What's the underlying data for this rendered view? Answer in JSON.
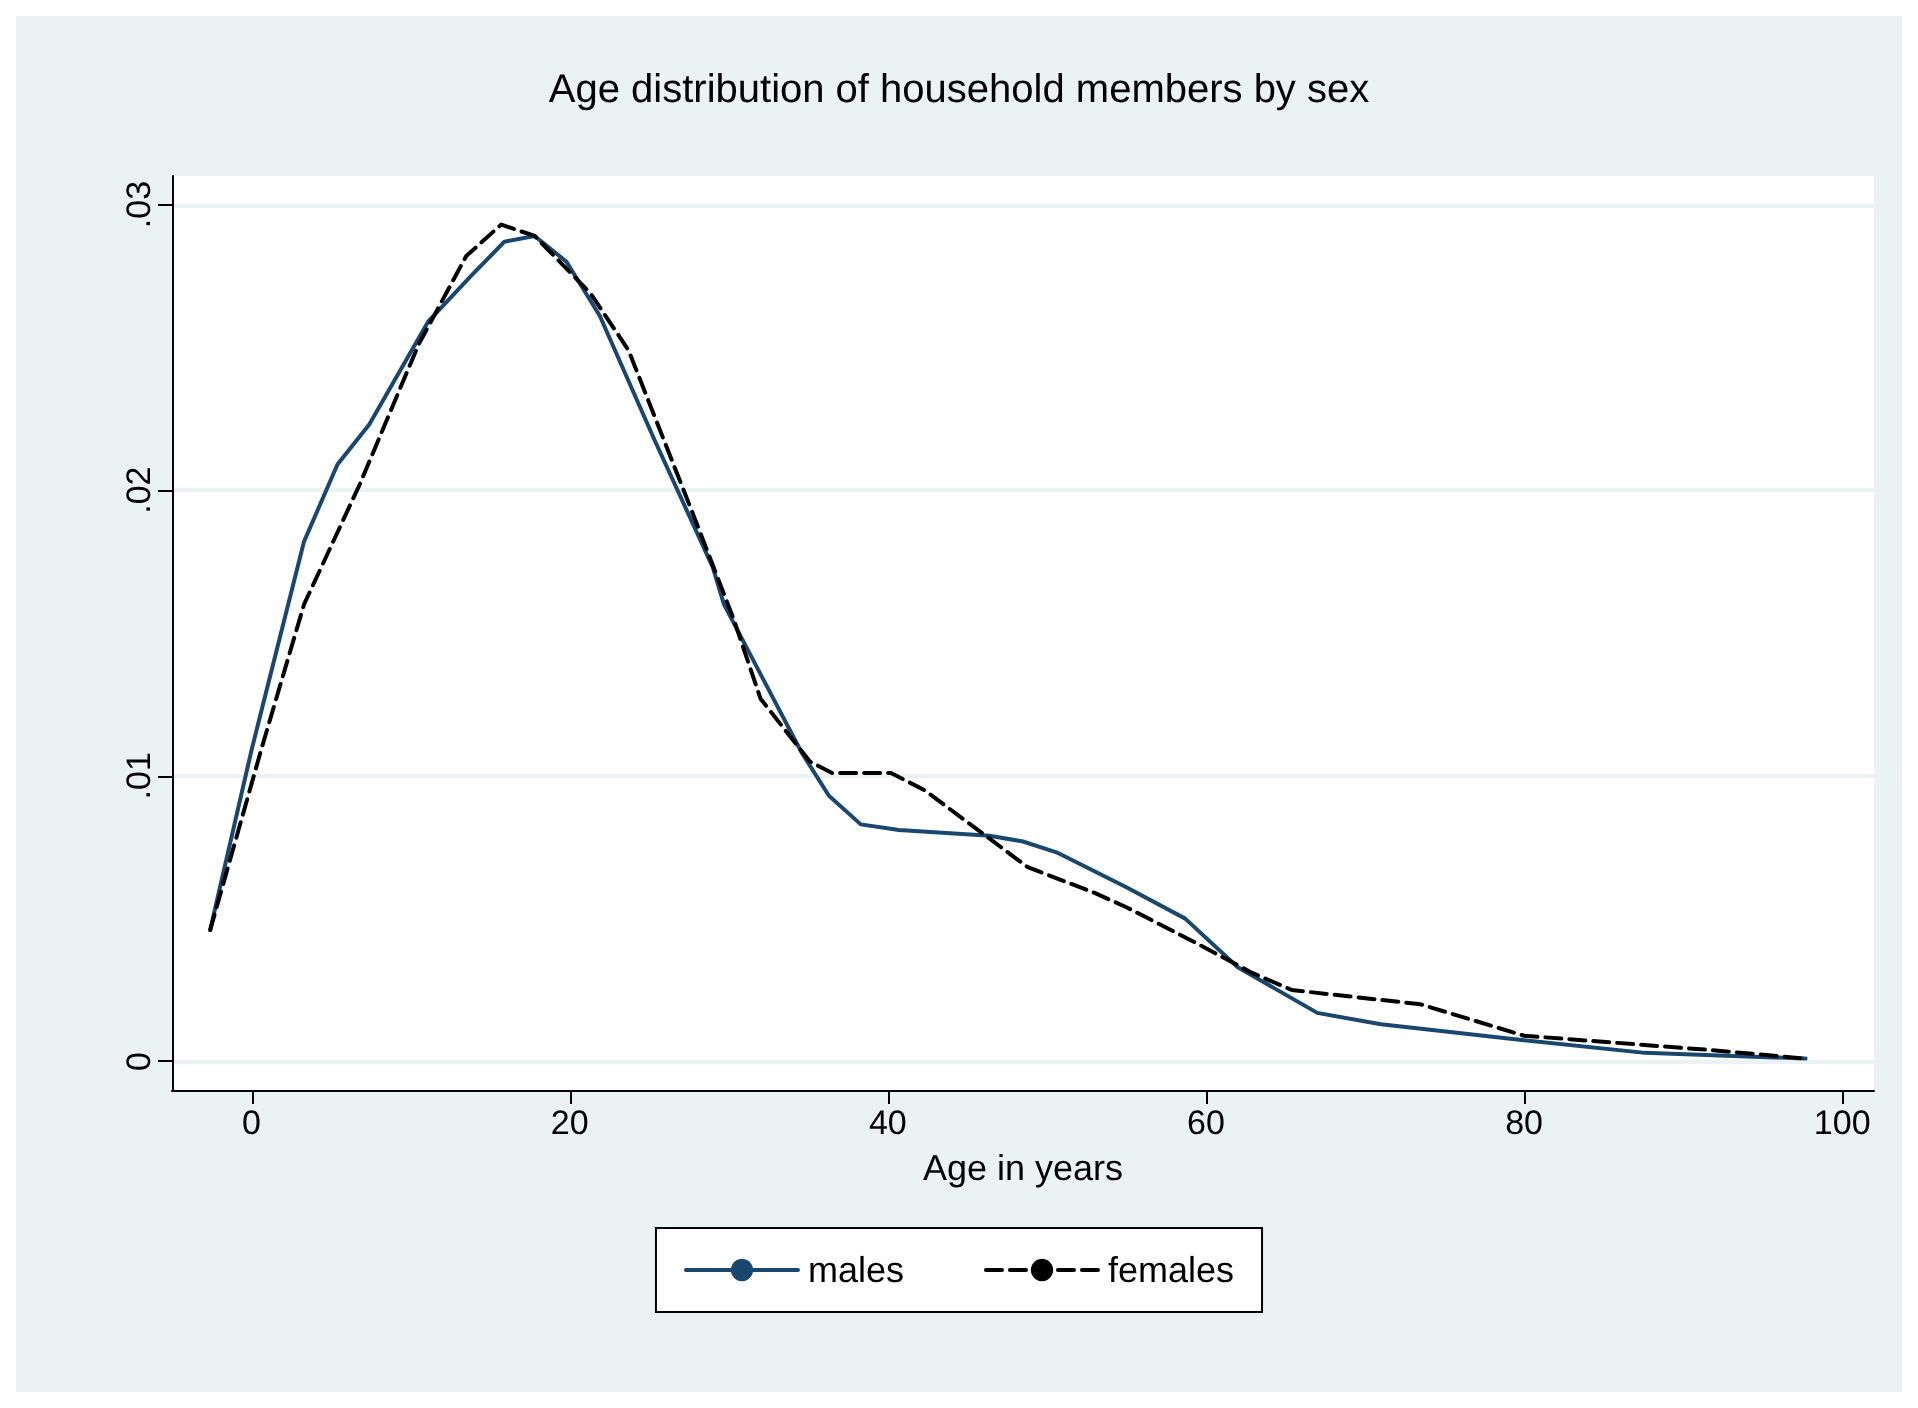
{
  "chart_data": {
    "type": "line",
    "title": "Age distribution of household members by sex",
    "xlabel": "Age in years",
    "xlim": [
      -5,
      102
    ],
    "xticks": [
      0,
      20,
      40,
      60,
      80,
      100
    ],
    "ylim": [
      -0.001,
      0.031
    ],
    "yticks": [
      {
        "value": 0,
        "label": "0"
      },
      {
        "value": 0.01,
        "label": ".01"
      },
      {
        "value": 0.02,
        "label": ".02"
      },
      {
        "value": 0.03,
        "label": ".03"
      }
    ],
    "grid": "y",
    "legend": "bottom",
    "marker": "none",
    "series": [
      {
        "name": "males",
        "color": "#1a476f",
        "line_style": "solid",
        "x": [
          -2.6,
          0,
          3.3,
          5.4,
          7.4,
          11.1,
          13.8,
          15.9,
          17.8,
          19.8,
          21.9,
          25.3,
          29,
          29.7,
          34.6,
          36.3,
          38.3,
          40.7,
          46.4,
          48.5,
          50.7,
          55,
          58.7,
          62,
          67,
          71,
          79,
          87.6,
          97.7
        ],
        "values": [
          0.0046,
          0.0109,
          0.0182,
          0.0209,
          0.0223,
          0.0259,
          0.0275,
          0.0287,
          0.0289,
          0.028,
          0.0261,
          0.0218,
          0.0173,
          0.016,
          0.0108,
          0.0093,
          0.0083,
          0.0081,
          0.0079,
          0.0077,
          0.0073,
          0.0061,
          0.005,
          0.0033,
          0.0017,
          0.0013,
          0.0008,
          0.0003,
          0.0001
        ]
      },
      {
        "name": "females",
        "color": "#000000",
        "line_style": "dashed",
        "x": [
          -2.6,
          0.6,
          3.3,
          6.8,
          10.5,
          13.5,
          15.7,
          17.8,
          21.3,
          23.7,
          27.8,
          30.3,
          32,
          35.1,
          36.5,
          40.2,
          42.3,
          46.4,
          48.8,
          53,
          55,
          59.2,
          62.9,
          65.4,
          73.5,
          80,
          91.7,
          97.7
        ],
        "values": [
          0.0046,
          0.0109,
          0.016,
          0.0202,
          0.0251,
          0.0282,
          0.0293,
          0.0289,
          0.0269,
          0.0249,
          0.0191,
          0.0155,
          0.0127,
          0.0105,
          0.0101,
          0.0101,
          0.0095,
          0.0078,
          0.0068,
          0.0059,
          0.0054,
          0.0042,
          0.0031,
          0.0025,
          0.002,
          0.0009,
          0.0004,
          0.0001
        ]
      }
    ]
  }
}
